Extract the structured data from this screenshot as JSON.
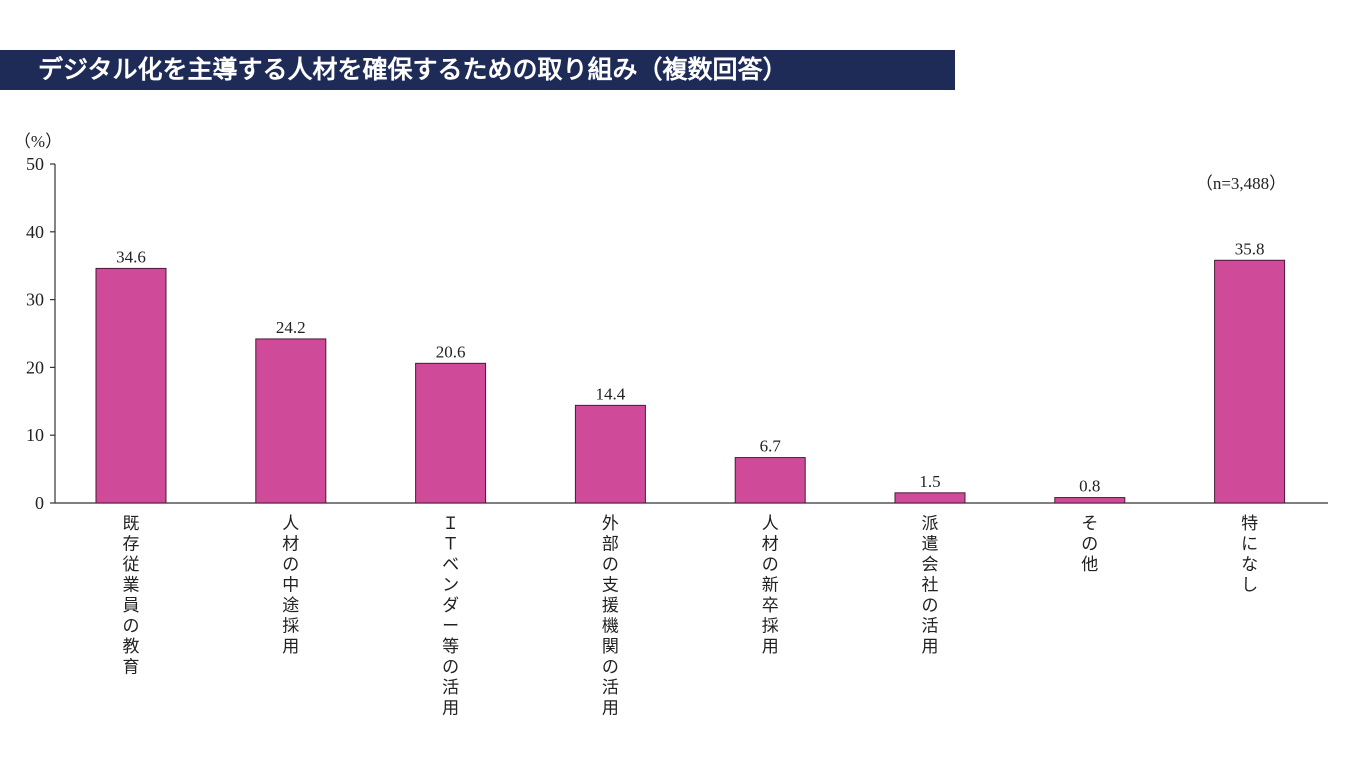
{
  "title": "デジタル化を主導する人材を確保するための取り組み（複数回答）",
  "chart_data": {
    "type": "bar",
    "unit_label": "（%）",
    "note": "（n=3,488）",
    "categories": [
      "既存従業員の教育",
      "人材の中途採用",
      "ＩＴベンダー等の活用",
      "外部の支援機関の活用",
      "人材の新卒採用",
      "派遣会社の活用",
      "その他",
      "特になし"
    ],
    "values": [
      34.6,
      24.2,
      20.6,
      14.4,
      6.7,
      1.5,
      0.8,
      35.8
    ],
    "value_labels": [
      "34.6",
      "24.2",
      "20.6",
      "14.4",
      "6.7",
      "1.5",
      "0.8",
      "35.8"
    ],
    "y_ticks": [
      0,
      10,
      20,
      30,
      40,
      50
    ],
    "ylim": [
      0,
      50
    ],
    "bar_color": "#d04a9a",
    "grid": false
  }
}
